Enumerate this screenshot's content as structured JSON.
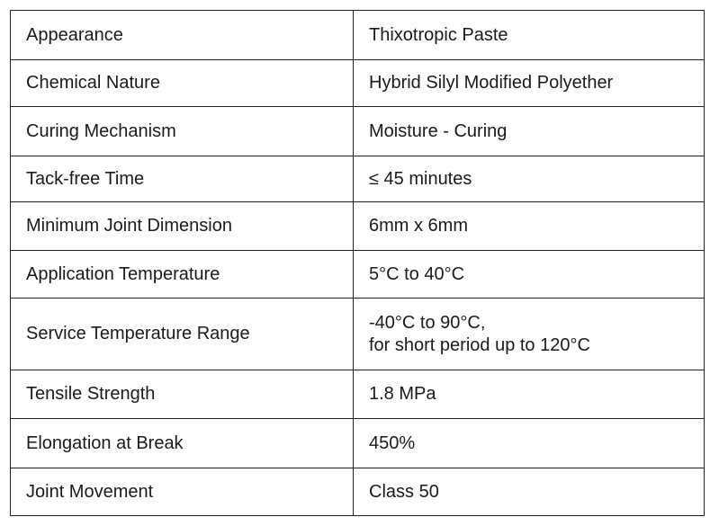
{
  "table": {
    "rows": [
      [
        "Appearance",
        "Thixotropic Paste"
      ],
      [
        "Chemical Nature",
        "Hybrid Silyl Modified Polyether"
      ],
      [
        "Curing Mechanism",
        "Moisture - Curing"
      ],
      [
        "Tack-free Time",
        "≤ 45 minutes"
      ],
      [
        "Minimum Joint Dimension",
        "6mm x 6mm"
      ],
      [
        "Application Temperature",
        "5°C to 40°C"
      ],
      [
        "Service Temperature Range",
        [
          "-40°C to 90°C,",
          "for short period up to 120°C"
        ]
      ],
      [
        "Tensile Strength",
        "1.8 MPa"
      ],
      [
        "Elongation at Break",
        "450%"
      ],
      [
        "Joint Movement",
        "Class 50"
      ]
    ]
  }
}
